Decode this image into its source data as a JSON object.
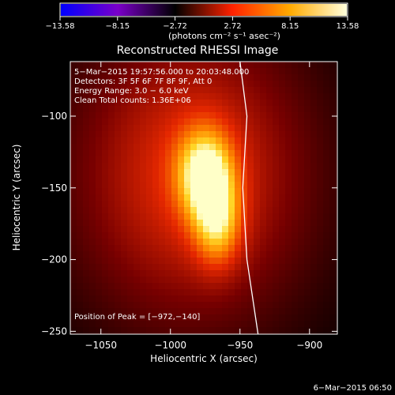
{
  "chart_data": {
    "type": "heatmap",
    "title": "Reconstructed RHESSI Image",
    "colorbar": {
      "tick_labels": [
        "−13.58",
        "−8.15",
        "−2.72",
        "2.72",
        "8.15",
        "13.58"
      ],
      "range": [
        -13.58,
        13.58
      ],
      "units_label": "(photons cm⁻² s⁻¹ asec⁻²)",
      "colors": [
        "#0000ff",
        "#7a00c8",
        "#000000",
        "#ff2200",
        "#ffaa00",
        "#ffffdd"
      ]
    },
    "info": [
      "5−Mar−2015 19:57:56.000 to 20:03:48.000",
      "Detectors: 3F 5F 6F 7F 8F 9F, Att 0",
      "Energy Range: 3.0 − 6.0 keV",
      "Clean    Total counts: 1.36E+06"
    ],
    "peak_label": "Position of Peak = [−972,−140]",
    "peak": [
      -972,
      -140
    ],
    "xlabel": "Heliocentric X (arcsec)",
    "ylabel": "Heliocentric Y (arcsec)",
    "xlim": [
      -1072,
      -880
    ],
    "ylim": [
      -252,
      -62
    ],
    "xticks": [
      -1050,
      -1000,
      -950,
      -900
    ],
    "xtick_labels": [
      "−1050",
      "−1000",
      "−950",
      "−900"
    ],
    "yticks": [
      -100,
      -150,
      -200,
      -250
    ],
    "ytick_labels": [
      "−100",
      "−150",
      "−200",
      "−250"
    ],
    "limb_curve": [
      [
        -950,
        -62
      ],
      [
        -945,
        -100
      ],
      [
        -948,
        -150
      ],
      [
        -945,
        -200
      ],
      [
        -937,
        -252
      ]
    ],
    "blobs": [
      {
        "x": -985,
        "y": -140,
        "sx": 65,
        "sy": 80,
        "amp": 0.55
      },
      {
        "x": -975,
        "y": -140,
        "sx": 14,
        "sy": 22,
        "amp": 0.6
      },
      {
        "x": -966,
        "y": -175,
        "sx": 12,
        "sy": 22,
        "amp": 0.45
      }
    ]
  },
  "timestamp": "6−Mar−2015 06:50"
}
